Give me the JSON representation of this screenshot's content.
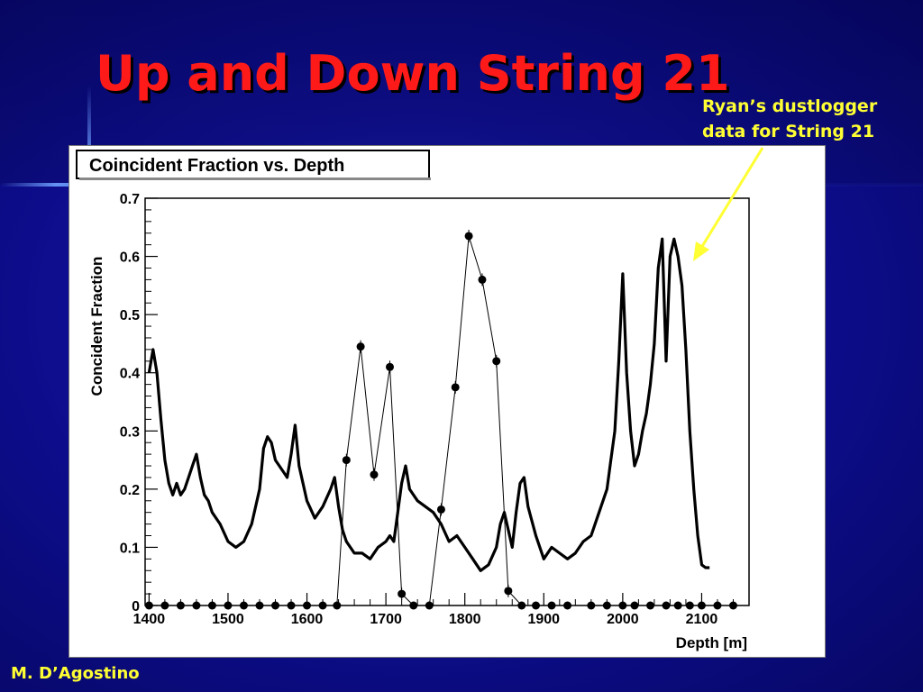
{
  "slide": {
    "title": "Up and Down String 21",
    "annotation_lines": [
      "Ryan’s dustlogger",
      "data for String 21"
    ],
    "author": "M. D’Agostino",
    "colors": {
      "background": "#0d0d8c",
      "title": "#ff1a1a",
      "annotation": "#ffff33",
      "arrow": "#ffff33"
    }
  },
  "chart_data": {
    "type": "line",
    "title": "Coincident Fraction vs. Depth",
    "xlabel": "Depth [m]",
    "ylabel": "Concident Fraction",
    "xlim": [
      1395,
      2160
    ],
    "ylim": [
      0,
      0.7
    ],
    "xticks": [
      1400,
      1500,
      1600,
      1700,
      1800,
      1900,
      2000,
      2100
    ],
    "yticks": [
      0,
      0.1,
      0.2,
      0.3,
      0.4,
      0.5,
      0.6,
      0.7
    ],
    "ytick_labels": [
      "0",
      "0.1",
      "0.2",
      "0.3",
      "0.4",
      "0.5",
      "0.6",
      "0.7"
    ],
    "grid": false,
    "legend": "none",
    "series": [
      {
        "style": "dense-line",
        "x": [
          1400,
          1405,
          1410,
          1415,
          1420,
          1425,
          1430,
          1435,
          1440,
          1445,
          1450,
          1455,
          1460,
          1465,
          1470,
          1475,
          1480,
          1490,
          1500,
          1510,
          1520,
          1530,
          1540,
          1545,
          1550,
          1555,
          1560,
          1570,
          1575,
          1580,
          1585,
          1590,
          1600,
          1610,
          1620,
          1630,
          1635,
          1640,
          1645,
          1650,
          1660,
          1670,
          1680,
          1690,
          1700,
          1705,
          1710,
          1715,
          1720,
          1725,
          1730,
          1740,
          1750,
          1760,
          1770,
          1780,
          1790,
          1800,
          1810,
          1820,
          1830,
          1840,
          1845,
          1850,
          1855,
          1860,
          1865,
          1870,
          1875,
          1880,
          1890,
          1900,
          1910,
          1920,
          1930,
          1940,
          1950,
          1960,
          1970,
          1980,
          1985,
          1990,
          1995,
          2000,
          2005,
          2010,
          2015,
          2020,
          2025,
          2030,
          2035,
          2040,
          2045,
          2050,
          2055,
          2060,
          2065,
          2070,
          2075,
          2080,
          2085,
          2090,
          2095,
          2100,
          2105,
          2110
        ],
        "y": [
          0.4,
          0.44,
          0.4,
          0.32,
          0.25,
          0.21,
          0.19,
          0.21,
          0.19,
          0.2,
          0.22,
          0.24,
          0.26,
          0.22,
          0.19,
          0.18,
          0.16,
          0.14,
          0.11,
          0.1,
          0.11,
          0.14,
          0.2,
          0.27,
          0.29,
          0.28,
          0.25,
          0.23,
          0.22,
          0.26,
          0.31,
          0.24,
          0.18,
          0.15,
          0.17,
          0.2,
          0.22,
          0.17,
          0.13,
          0.11,
          0.09,
          0.09,
          0.08,
          0.1,
          0.11,
          0.12,
          0.11,
          0.16,
          0.21,
          0.24,
          0.2,
          0.18,
          0.17,
          0.16,
          0.14,
          0.11,
          0.12,
          0.1,
          0.08,
          0.06,
          0.07,
          0.1,
          0.14,
          0.16,
          0.13,
          0.1,
          0.16,
          0.21,
          0.22,
          0.17,
          0.12,
          0.08,
          0.1,
          0.09,
          0.08,
          0.09,
          0.11,
          0.12,
          0.16,
          0.2,
          0.25,
          0.3,
          0.42,
          0.57,
          0.4,
          0.3,
          0.24,
          0.26,
          0.3,
          0.33,
          0.38,
          0.45,
          0.58,
          0.63,
          0.42,
          0.6,
          0.63,
          0.6,
          0.55,
          0.44,
          0.3,
          0.2,
          0.12,
          0.07,
          0.065,
          0.065
        ]
      },
      {
        "style": "markers-line",
        "x": [
          1400,
          1420,
          1440,
          1460,
          1480,
          1500,
          1520,
          1540,
          1560,
          1580,
          1600,
          1620,
          1638,
          1650,
          1668,
          1685,
          1705,
          1720,
          1735,
          1755,
          1770,
          1788,
          1805,
          1822,
          1840,
          1855,
          1872,
          1890,
          1910,
          1930,
          1960,
          1980,
          2000,
          2015,
          2035,
          2055,
          2070,
          2085,
          2100,
          2120,
          2140
        ],
        "y": [
          0,
          0,
          0,
          0,
          0,
          0,
          0,
          0,
          0,
          0,
          0,
          0,
          0,
          0.25,
          0.445,
          0.225,
          0.41,
          0.02,
          0,
          0,
          0.165,
          0.375,
          0.635,
          0.56,
          0.42,
          0.025,
          0,
          0,
          0,
          0,
          0,
          0,
          0,
          0,
          0,
          0,
          0,
          0,
          0,
          0,
          0
        ]
      }
    ]
  }
}
